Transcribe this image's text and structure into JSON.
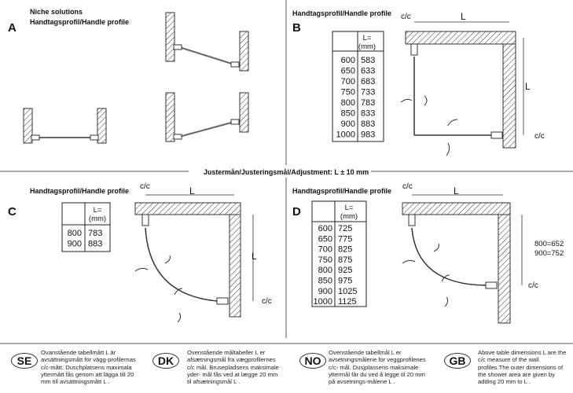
{
  "header": {
    "adjustment": "Justermån/Justeringsmål/Adjustment: L ± 10 mm"
  },
  "panels": {
    "A": {
      "letter": "A",
      "title1": "Niche solutions",
      "title2": "Handtagsprofil/Handle profile"
    },
    "B": {
      "letter": "B",
      "title": "Handtagsprofil/Handle profile",
      "cc_top": "c/c",
      "cc_side": "c/c",
      "L_top": "L",
      "L_side": "L",
      "table": {
        "header1": "L=",
        "header2": "(mm)",
        "rows": [
          [
            "600",
            "583"
          ],
          [
            "650",
            "633"
          ],
          [
            "700",
            "683"
          ],
          [
            "750",
            "733"
          ],
          [
            "800",
            "783"
          ],
          [
            "850",
            "833"
          ],
          [
            "900",
            "883"
          ],
          [
            "1000",
            "983"
          ]
        ]
      }
    },
    "C": {
      "letter": "C",
      "title": "Handtagsprofil/Handle profile",
      "cc_top": "c/c",
      "cc_side": "c/c",
      "L_top": "L",
      "L_side": "L",
      "table": {
        "header1": "L=",
        "header2": "(mm)",
        "rows": [
          [
            "800",
            "783"
          ],
          [
            "900",
            "883"
          ]
        ]
      }
    },
    "D": {
      "letter": "D",
      "title": "Handtagsprofil/Handle profile",
      "cc_top": "c/c",
      "cc_side": "c/c",
      "L_top": "L",
      "dim1": "800=652",
      "dim2": "900=752",
      "table": {
        "header1": "L=",
        "header2": "(mm)",
        "rows": [
          [
            "600",
            "725"
          ],
          [
            "650",
            "775"
          ],
          [
            "700",
            "825"
          ],
          [
            "750",
            "875"
          ],
          [
            "800",
            "925"
          ],
          [
            "850",
            "975"
          ],
          [
            "900",
            "1025"
          ],
          [
            "1000",
            "1125"
          ]
        ]
      }
    }
  },
  "notes": [
    {
      "code": "SE",
      "text": "Ovanstående tabellmått L är avsättningsmått för vägg-profilernas c/c-mått. Duschplatsens maximala yttermått fås genom att lägga till 20 mm till avsättningsmått L ."
    },
    {
      "code": "DK",
      "text": "Ovenstående måltabeller L er afsætningsmål fra vægprofilernes c/c mål. Brusepladsens maksimale yder- mål fås ved at lægge 20 mm til afsætningsmål L ."
    },
    {
      "code": "NO",
      "text": "Ovenstående tabellmål L er avsetningsmålene for veggprofilenes c/c- mål. Dusjplassens maksimale yttermål får du ved å legge til 20 mm på avsetnings-målene L ."
    },
    {
      "code": "GB",
      "text": "Above table dimensions L are the c/c measure of the wall profiles.The outer dimensions of the shower area are given by adding 20 mm to L ."
    }
  ]
}
